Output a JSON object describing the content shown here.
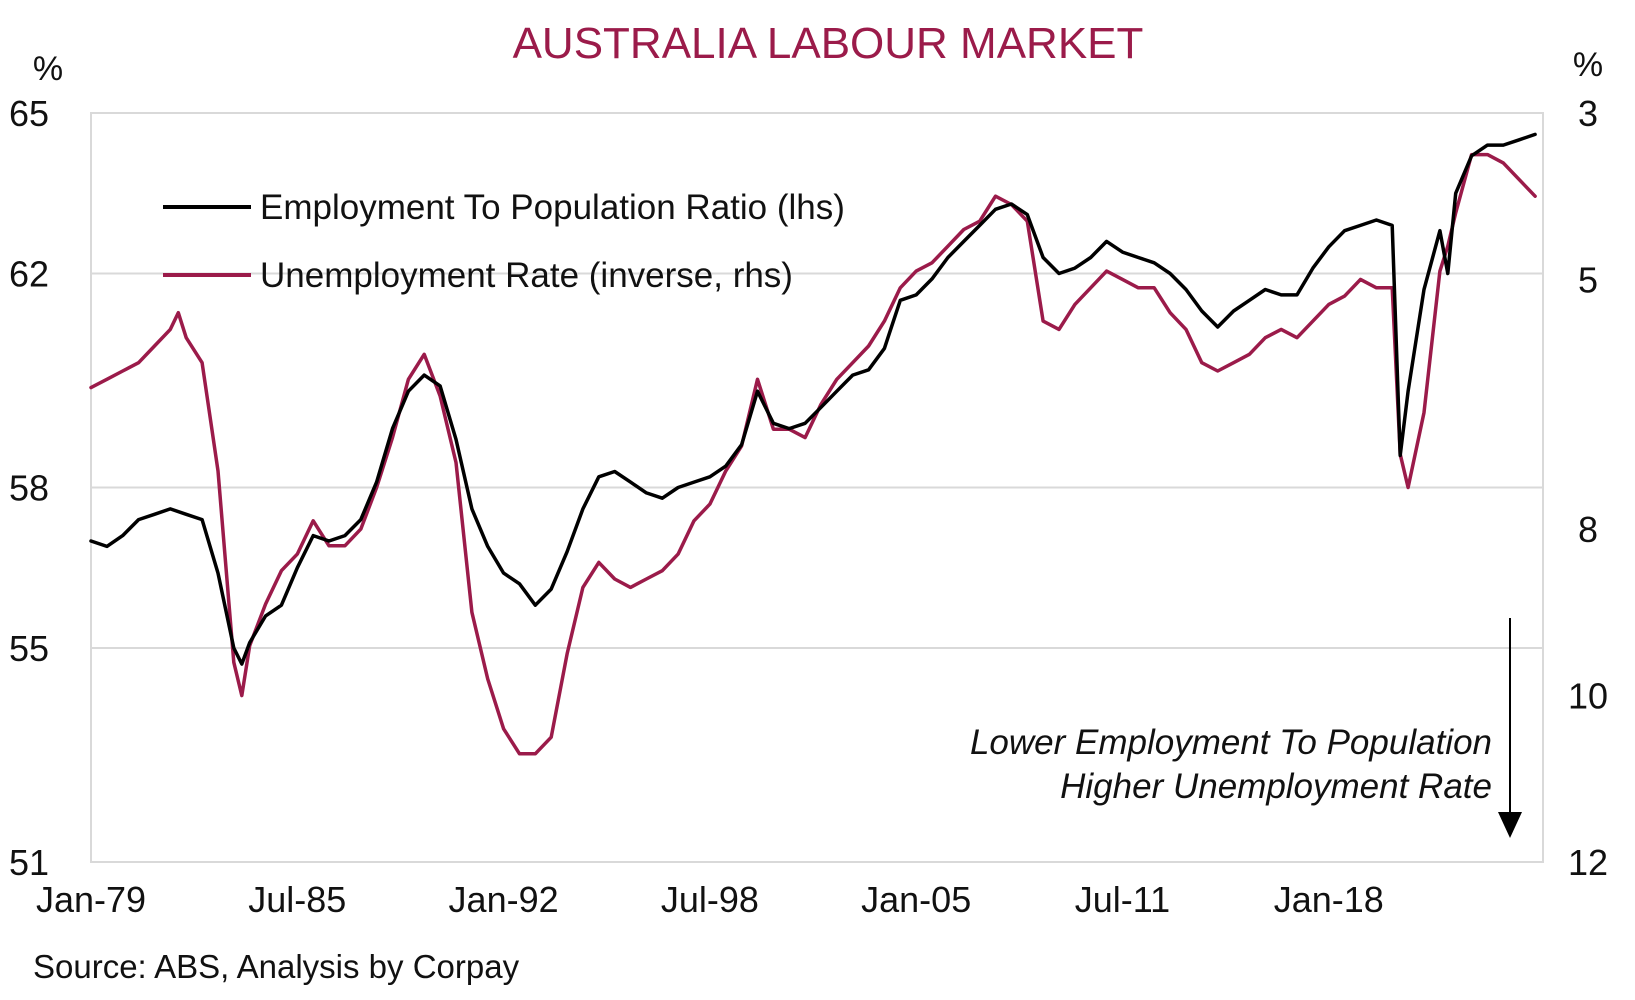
{
  "colors": {
    "title": "#9b1b4a",
    "employment_series": "#000000",
    "unemployment_series": "#9b1b4a",
    "grid": "#d9d9d9"
  },
  "footer": {
    "source": "Source: ABS, Analysis by Corpay"
  },
  "annotation": {
    "line1": "Lower Employment To Population",
    "line2": "Higher Unemployment Rate",
    "arrow": "down-arrow"
  },
  "chart_data": {
    "type": "line",
    "title": "AUSTRALIA LABOUR MARKET",
    "left_axis": {
      "unit": "%",
      "range": [
        51,
        65
      ],
      "ticks": [
        "65",
        "62",
        "58",
        "55",
        "51"
      ],
      "tick_values": [
        65,
        62,
        58,
        55,
        51
      ]
    },
    "right_axis": {
      "unit": "%",
      "range": [
        3,
        12
      ],
      "inverted": true,
      "ticks": [
        "3",
        "5",
        "8",
        "10",
        "12"
      ],
      "tick_values": [
        3,
        5,
        8,
        10,
        12
      ]
    },
    "x_axis": {
      "range": [
        1979.0,
        2024.75
      ],
      "ticks": [
        "Jan-79",
        "Jul-85",
        "Jan-92",
        "Jul-98",
        "Jan-05",
        "Jul-11",
        "Jan-18"
      ],
      "tick_values": [
        1979.0,
        1985.5,
        1992.0,
        1998.5,
        2005.0,
        2011.5,
        2018.0
      ]
    },
    "grid": true,
    "legend_position": "top-left",
    "series": [
      {
        "name": "Employment To Population Ratio (lhs)",
        "axis": "left",
        "color": "#000000",
        "points": [
          [
            1979.0,
            57.0
          ],
          [
            1979.5,
            56.9
          ],
          [
            1980.0,
            57.1
          ],
          [
            1980.5,
            57.4
          ],
          [
            1981.0,
            57.5
          ],
          [
            1981.5,
            57.6
          ],
          [
            1982.0,
            57.5
          ],
          [
            1982.5,
            57.4
          ],
          [
            1983.0,
            56.4
          ],
          [
            1983.5,
            55.0
          ],
          [
            1983.75,
            54.7
          ],
          [
            1984.0,
            55.1
          ],
          [
            1984.5,
            55.6
          ],
          [
            1985.0,
            55.8
          ],
          [
            1985.5,
            56.5
          ],
          [
            1986.0,
            57.1
          ],
          [
            1986.5,
            57.0
          ],
          [
            1987.0,
            57.1
          ],
          [
            1987.5,
            57.4
          ],
          [
            1988.0,
            58.1
          ],
          [
            1988.5,
            59.1
          ],
          [
            1989.0,
            59.8
          ],
          [
            1989.5,
            60.1
          ],
          [
            1990.0,
            59.9
          ],
          [
            1990.5,
            58.9
          ],
          [
            1991.0,
            57.6
          ],
          [
            1991.5,
            56.9
          ],
          [
            1992.0,
            56.4
          ],
          [
            1992.5,
            56.2
          ],
          [
            1993.0,
            55.8
          ],
          [
            1993.5,
            56.1
          ],
          [
            1994.0,
            56.8
          ],
          [
            1994.5,
            57.6
          ],
          [
            1995.0,
            58.2
          ],
          [
            1995.5,
            58.3
          ],
          [
            1996.0,
            58.1
          ],
          [
            1996.5,
            57.9
          ],
          [
            1997.0,
            57.8
          ],
          [
            1997.5,
            58.0
          ],
          [
            1998.0,
            58.1
          ],
          [
            1998.5,
            58.2
          ],
          [
            1999.0,
            58.4
          ],
          [
            1999.5,
            58.8
          ],
          [
            2000.0,
            59.8
          ],
          [
            2000.5,
            59.2
          ],
          [
            2001.0,
            59.1
          ],
          [
            2001.5,
            59.2
          ],
          [
            2002.0,
            59.5
          ],
          [
            2002.5,
            59.8
          ],
          [
            2003.0,
            60.1
          ],
          [
            2003.5,
            60.2
          ],
          [
            2004.0,
            60.6
          ],
          [
            2004.5,
            61.5
          ],
          [
            2005.0,
            61.6
          ],
          [
            2005.5,
            61.9
          ],
          [
            2006.0,
            62.3
          ],
          [
            2006.5,
            62.6
          ],
          [
            2007.0,
            62.9
          ],
          [
            2007.5,
            63.2
          ],
          [
            2008.0,
            63.3
          ],
          [
            2008.5,
            63.1
          ],
          [
            2009.0,
            62.3
          ],
          [
            2009.5,
            62.0
          ],
          [
            2010.0,
            62.1
          ],
          [
            2010.5,
            62.3
          ],
          [
            2011.0,
            62.6
          ],
          [
            2011.5,
            62.4
          ],
          [
            2012.0,
            62.3
          ],
          [
            2012.5,
            62.2
          ],
          [
            2013.0,
            62.0
          ],
          [
            2013.5,
            61.7
          ],
          [
            2014.0,
            61.3
          ],
          [
            2014.5,
            61.0
          ],
          [
            2015.0,
            61.3
          ],
          [
            2015.5,
            61.5
          ],
          [
            2016.0,
            61.7
          ],
          [
            2016.5,
            61.6
          ],
          [
            2017.0,
            61.6
          ],
          [
            2017.5,
            62.1
          ],
          [
            2018.0,
            62.5
          ],
          [
            2018.5,
            62.8
          ],
          [
            2019.0,
            62.9
          ],
          [
            2019.5,
            63.0
          ],
          [
            2020.0,
            62.9
          ],
          [
            2020.25,
            58.6
          ],
          [
            2020.5,
            59.8
          ],
          [
            2021.0,
            61.7
          ],
          [
            2021.5,
            62.8
          ],
          [
            2021.75,
            62.0
          ],
          [
            2022.0,
            63.5
          ],
          [
            2022.5,
            64.2
          ],
          [
            2023.0,
            64.4
          ],
          [
            2023.5,
            64.4
          ],
          [
            2024.0,
            64.5
          ],
          [
            2024.5,
            64.6
          ]
        ]
      },
      {
        "name": "Unemployment Rate (inverse, rhs)",
        "axis": "right",
        "color": "#9b1b4a",
        "points": [
          [
            1979.0,
            6.3
          ],
          [
            1979.5,
            6.2
          ],
          [
            1980.0,
            6.1
          ],
          [
            1980.5,
            6.0
          ],
          [
            1981.0,
            5.8
          ],
          [
            1981.5,
            5.6
          ],
          [
            1981.75,
            5.4
          ],
          [
            1982.0,
            5.7
          ],
          [
            1982.5,
            6.0
          ],
          [
            1983.0,
            7.3
          ],
          [
            1983.5,
            9.6
          ],
          [
            1983.75,
            10.0
          ],
          [
            1984.0,
            9.4
          ],
          [
            1984.5,
            8.9
          ],
          [
            1985.0,
            8.5
          ],
          [
            1985.5,
            8.3
          ],
          [
            1986.0,
            7.9
          ],
          [
            1986.5,
            8.2
          ],
          [
            1987.0,
            8.2
          ],
          [
            1987.5,
            8.0
          ],
          [
            1988.0,
            7.5
          ],
          [
            1988.5,
            6.9
          ],
          [
            1989.0,
            6.2
          ],
          [
            1989.5,
            5.9
          ],
          [
            1990.0,
            6.4
          ],
          [
            1990.5,
            7.2
          ],
          [
            1991.0,
            9.0
          ],
          [
            1991.5,
            9.8
          ],
          [
            1992.0,
            10.4
          ],
          [
            1992.5,
            10.7
          ],
          [
            1993.0,
            10.7
          ],
          [
            1993.5,
            10.5
          ],
          [
            1994.0,
            9.5
          ],
          [
            1994.5,
            8.7
          ],
          [
            1995.0,
            8.4
          ],
          [
            1995.5,
            8.6
          ],
          [
            1996.0,
            8.7
          ],
          [
            1996.5,
            8.6
          ],
          [
            1997.0,
            8.5
          ],
          [
            1997.5,
            8.3
          ],
          [
            1998.0,
            7.9
          ],
          [
            1998.5,
            7.7
          ],
          [
            1999.0,
            7.3
          ],
          [
            1999.5,
            7.0
          ],
          [
            2000.0,
            6.2
          ],
          [
            2000.5,
            6.8
          ],
          [
            2001.0,
            6.8
          ],
          [
            2001.5,
            6.9
          ],
          [
            2002.0,
            6.5
          ],
          [
            2002.5,
            6.2
          ],
          [
            2003.0,
            6.0
          ],
          [
            2003.5,
            5.8
          ],
          [
            2004.0,
            5.5
          ],
          [
            2004.5,
            5.1
          ],
          [
            2005.0,
            4.9
          ],
          [
            2005.5,
            4.8
          ],
          [
            2006.0,
            4.6
          ],
          [
            2006.5,
            4.4
          ],
          [
            2007.0,
            4.3
          ],
          [
            2007.5,
            4.0
          ],
          [
            2008.0,
            4.1
          ],
          [
            2008.5,
            4.3
          ],
          [
            2009.0,
            5.5
          ],
          [
            2009.5,
            5.6
          ],
          [
            2010.0,
            5.3
          ],
          [
            2010.5,
            5.1
          ],
          [
            2011.0,
            4.9
          ],
          [
            2011.5,
            5.0
          ],
          [
            2012.0,
            5.1
          ],
          [
            2012.5,
            5.1
          ],
          [
            2013.0,
            5.4
          ],
          [
            2013.5,
            5.6
          ],
          [
            2014.0,
            6.0
          ],
          [
            2014.5,
            6.1
          ],
          [
            2015.0,
            6.0
          ],
          [
            2015.5,
            5.9
          ],
          [
            2016.0,
            5.7
          ],
          [
            2016.5,
            5.6
          ],
          [
            2017.0,
            5.7
          ],
          [
            2017.5,
            5.5
          ],
          [
            2018.0,
            5.3
          ],
          [
            2018.5,
            5.2
          ],
          [
            2019.0,
            5.0
          ],
          [
            2019.5,
            5.1
          ],
          [
            2020.0,
            5.1
          ],
          [
            2020.25,
            7.1
          ],
          [
            2020.5,
            7.5
          ],
          [
            2021.0,
            6.6
          ],
          [
            2021.5,
            4.9
          ],
          [
            2021.75,
            4.6
          ],
          [
            2022.0,
            4.2
          ],
          [
            2022.5,
            3.5
          ],
          [
            2023.0,
            3.5
          ],
          [
            2023.5,
            3.6
          ],
          [
            2024.0,
            3.8
          ],
          [
            2024.5,
            4.0
          ]
        ]
      }
    ]
  }
}
